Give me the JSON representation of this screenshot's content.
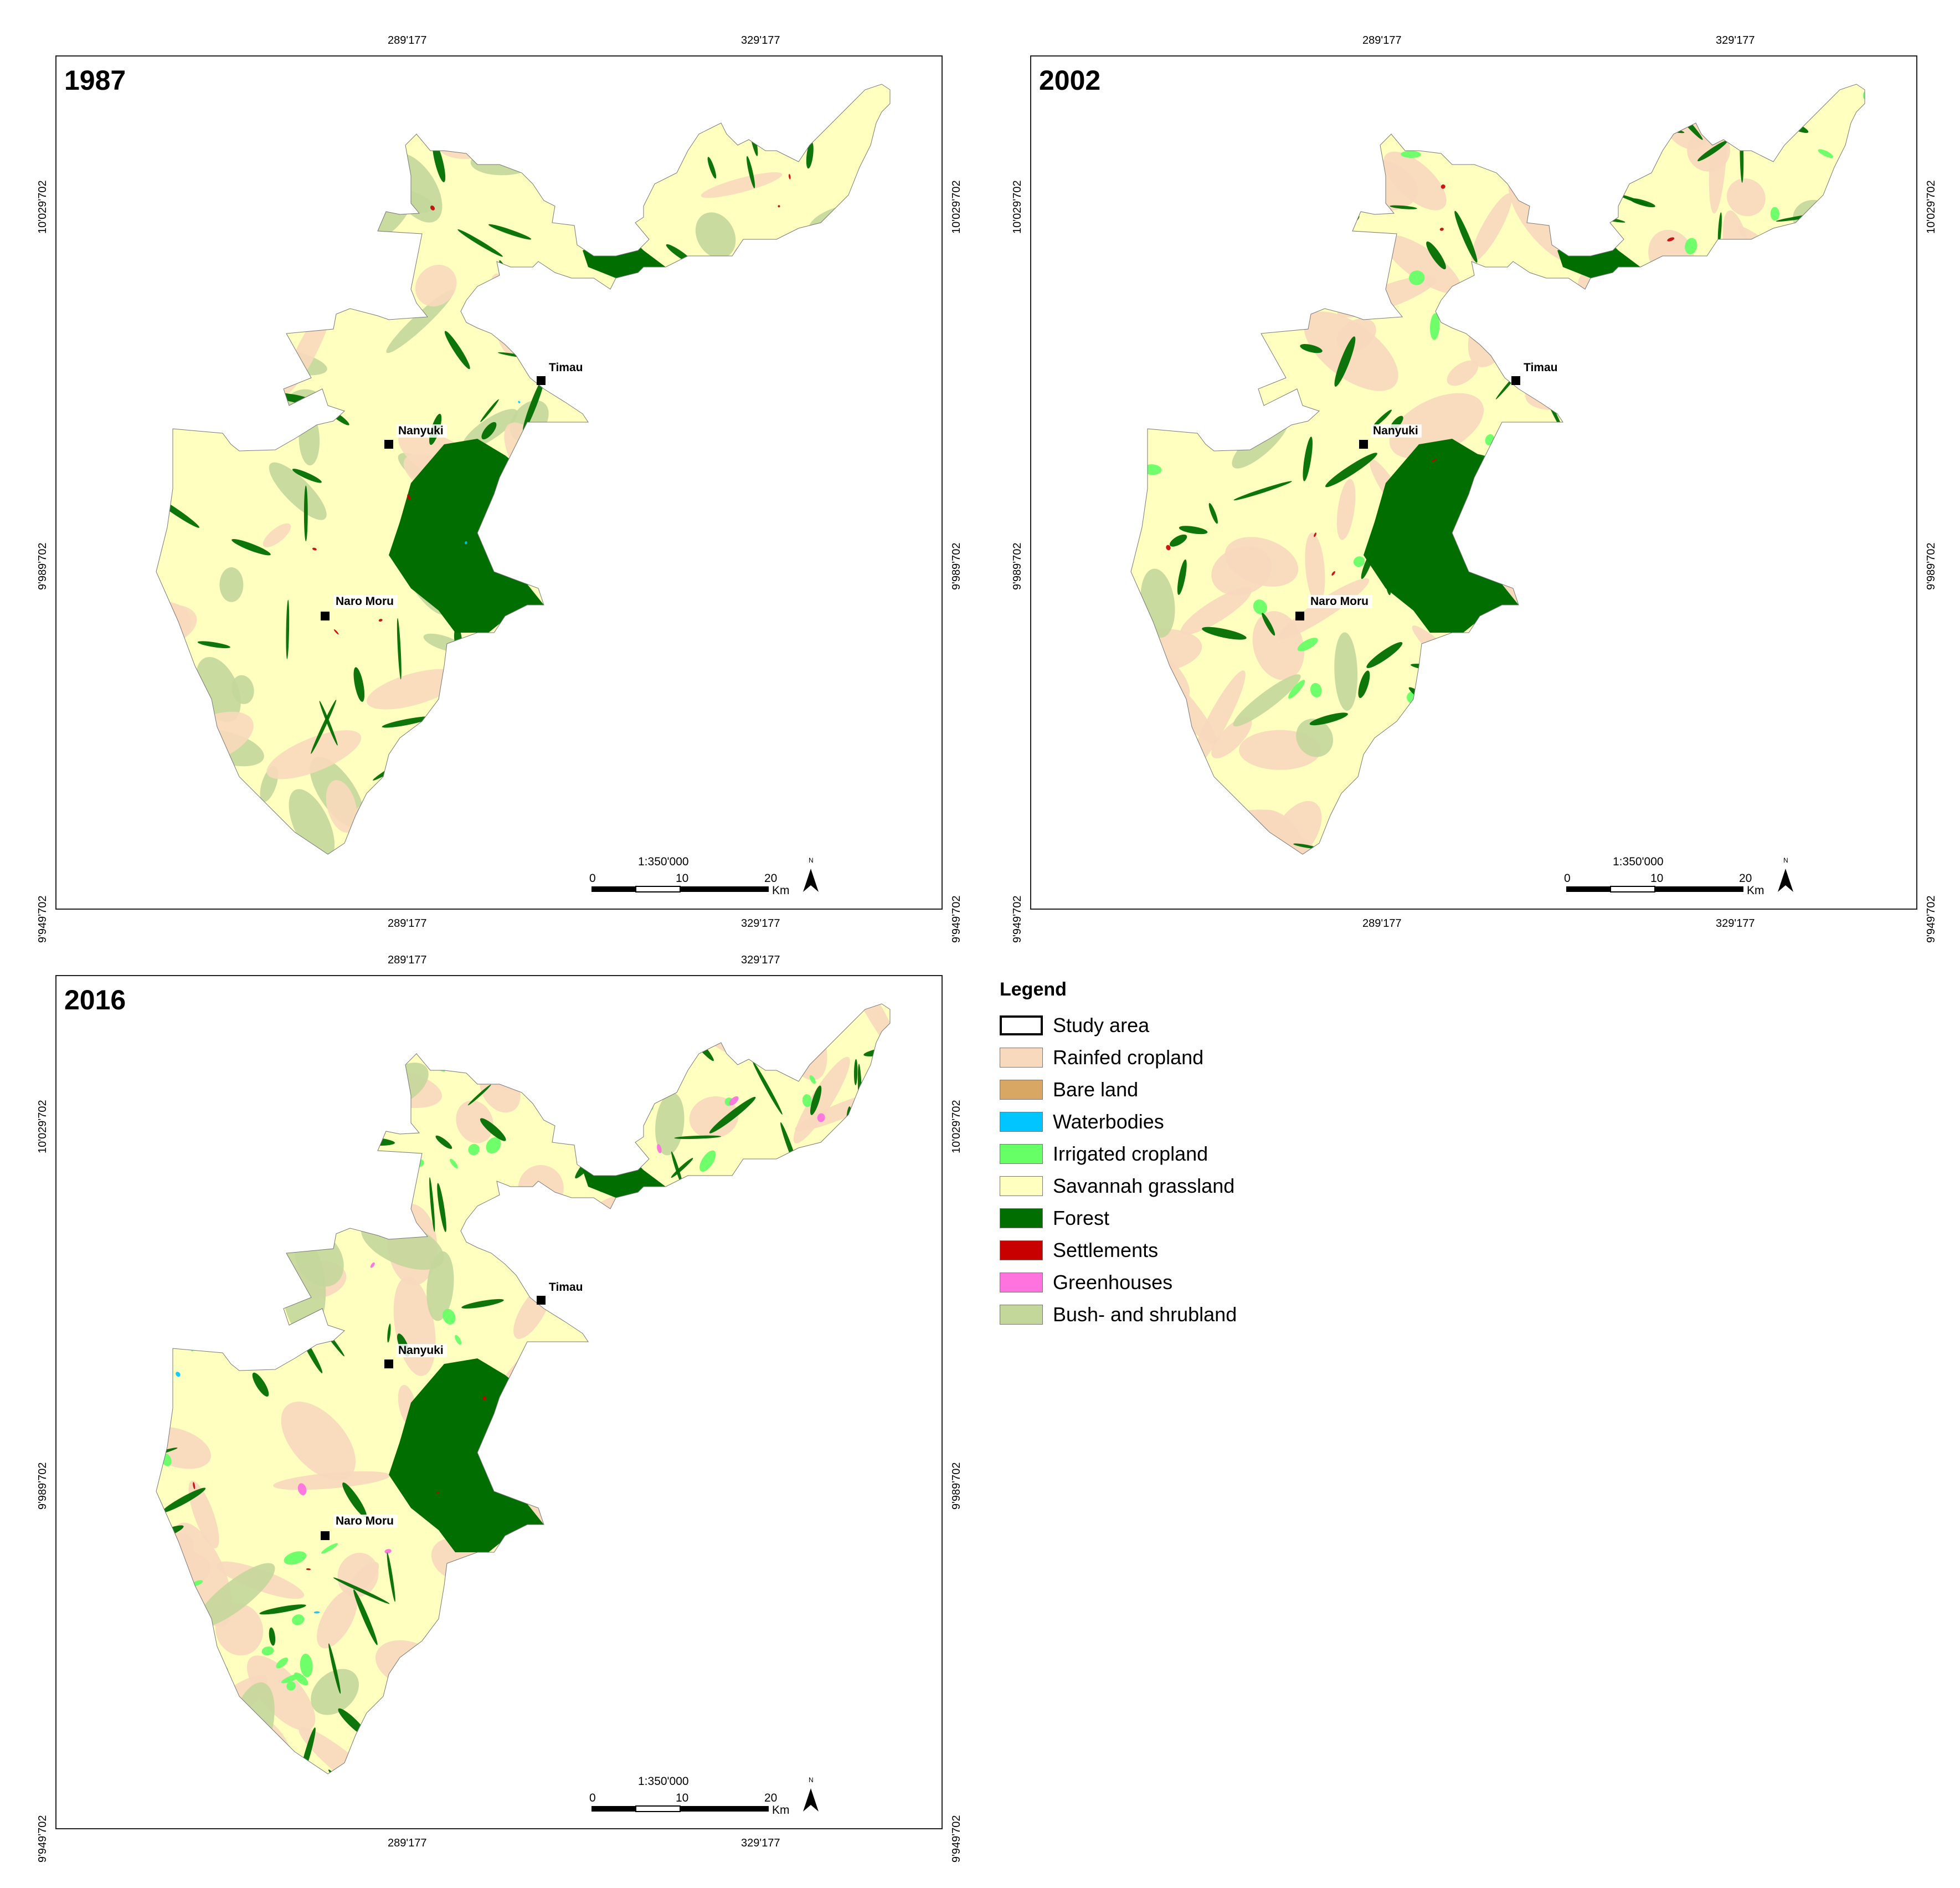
{
  "maps": [
    {
      "year": "1987",
      "towns": [
        "Nanyuki",
        "Timau",
        "Naro Moru"
      ]
    },
    {
      "year": "2002",
      "towns": [
        "Nanyuki",
        "Timau",
        "Naro Moru"
      ]
    },
    {
      "year": "2016",
      "towns": [
        "Nanyuki",
        "Timau",
        "Naro Moru"
      ]
    }
  ],
  "coordinates": {
    "x_ticks": [
      "289'177",
      "329'177"
    ],
    "y_ticks": [
      "10'029'702",
      "9'989'702",
      "9'949'702"
    ]
  },
  "scale": {
    "ratio": "1:350'000",
    "ticks": [
      "0",
      "10",
      "20"
    ],
    "unit": "Km",
    "north": "N"
  },
  "legend": {
    "title": "Legend",
    "items": [
      {
        "label": "Study area",
        "color": "#ffffff",
        "kind": "outline"
      },
      {
        "label": "Rainfed cropland",
        "color": "#f9d9bd"
      },
      {
        "label": "Bare land",
        "color": "#d8a764"
      },
      {
        "label": "Waterbodies",
        "color": "#00c5ff"
      },
      {
        "label": "Irrigated cropland",
        "color": "#66ff66"
      },
      {
        "label": "Savannah grassland",
        "color": "#ffffc0"
      },
      {
        "label": "Forest",
        "color": "#006e00"
      },
      {
        "label": "Settlements",
        "color": "#c80000"
      },
      {
        "label": "Greenhouses",
        "color": "#ff73df"
      },
      {
        "label": "Bush- and shrubland",
        "color": "#c4d79b"
      }
    ]
  },
  "colors": {
    "frame": "#222222",
    "town_marker": "#000000"
  }
}
